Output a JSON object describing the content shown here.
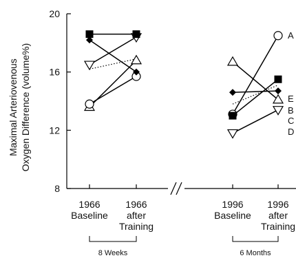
{
  "chart_data": {
    "type": "line",
    "ylabel": [
      "Maximal Arteriovenous",
      "Oxygen Difference (volume%)"
    ],
    "ylim": [
      8,
      20
    ],
    "yticks": [
      8,
      12,
      16,
      20
    ],
    "categories": [
      [
        "1966",
        "Baseline"
      ],
      [
        "1966",
        "after",
        "Training"
      ],
      [
        "1996",
        "Baseline"
      ],
      [
        "1996",
        "after",
        "Training"
      ]
    ],
    "period_labels": [
      "8 Weeks",
      "6 Months"
    ],
    "axis_break": true,
    "series": [
      {
        "name": "A",
        "marker": "circle-open",
        "line": "solid",
        "values": [
          13.8,
          15.7,
          13.1,
          18.5
        ]
      },
      {
        "name": "B",
        "marker": "diamond-filled",
        "line": "solid",
        "values": [
          18.2,
          16.0,
          14.6,
          14.7
        ]
      },
      {
        "name": "C",
        "marker": "triangle-up-open",
        "line": "solid",
        "values": [
          13.6,
          16.8,
          16.7,
          14.1
        ]
      },
      {
        "name": "D",
        "marker": "triangle-down-open",
        "line": "solid",
        "values": [
          16.5,
          18.4,
          11.8,
          13.4
        ]
      },
      {
        "name": "E",
        "marker": "square-filled",
        "line": "solid",
        "values": [
          18.6,
          18.6,
          13.0,
          15.5
        ]
      }
    ],
    "dotted_segments": [
      {
        "from": [
          0,
          16.2
        ],
        "to": [
          1,
          16.9
        ]
      },
      {
        "from": [
          2,
          13.8
        ],
        "to": [
          3,
          15.1
        ]
      }
    ]
  }
}
